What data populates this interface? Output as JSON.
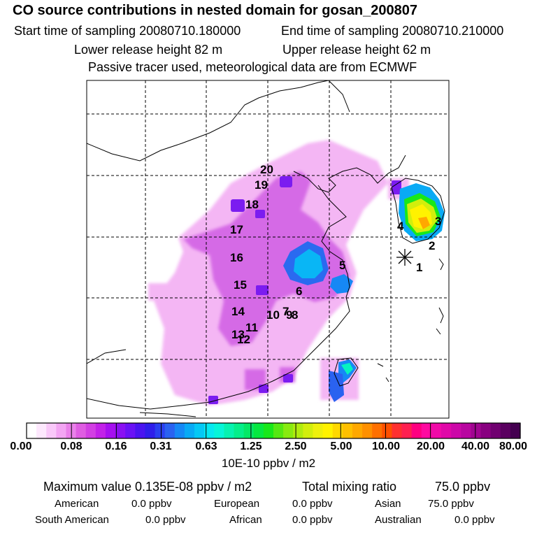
{
  "header": {
    "title": "CO  source contributions in nested domain for gosan_200807",
    "start_sampling": "Start time of sampling 20080710.180000",
    "end_sampling": "End time of sampling 20080710.210000",
    "lower_release": "Lower release height   82 m",
    "upper_release": "Upper release height   62 m",
    "tracer_note": "Passive tracer used, meteorological data are from ECMWF"
  },
  "map": {
    "markers": [
      "1",
      "2",
      "3",
      "4",
      "5",
      "6",
      "7",
      "8",
      "9",
      "10",
      "11",
      "12",
      "13",
      "14",
      "15",
      "16",
      "17",
      "18",
      "19",
      "20"
    ]
  },
  "colorbar": {
    "ticks": [
      "0.00",
      "0.08",
      "0.16",
      "0.31",
      "0.63",
      "1.25",
      "2.50",
      "5.00",
      "10.00",
      "20.00",
      "40.00",
      "80.00"
    ],
    "units": "10E-10 ppbv / m2",
    "colors": [
      "#ffffff",
      "#fde8fd",
      "#f9c8f9",
      "#f3a5f3",
      "#ea80ea",
      "#df5de2",
      "#d23fe3",
      "#c221e8",
      "#a60ff0",
      "#8a10f2",
      "#6a12f5",
      "#4a14f0",
      "#2f1eea",
      "#2a40f0",
      "#2a62f0",
      "#1688f5",
      "#09aaf5",
      "#05c8f5",
      "#06e8f0",
      "#06f5d8",
      "#06f2b0",
      "#05ee8a",
      "#05e866",
      "#06e840",
      "#18e81a",
      "#55e812",
      "#88ea10",
      "#b0ec0e",
      "#d2ee0c",
      "#eef00c",
      "#fff200",
      "#ffd800",
      "#ffc000",
      "#ffa800",
      "#ff9000",
      "#ff7000",
      "#ff5000",
      "#ff3030",
      "#ff2050",
      "#ff0080",
      "#ff0aa0",
      "#f00aa8",
      "#e008a8",
      "#cc08a8",
      "#b806a0",
      "#a00490",
      "#880080",
      "#700070",
      "#5a0060",
      "#440050"
    ]
  },
  "summary": {
    "max_value": "Maximum value  0.135E-08 ppbv / m2",
    "total_mixing_label": "Total mixing ratio",
    "total_mixing_value": "75.0 ppbv",
    "american_label": "American",
    "american_value": "0.0 ppbv",
    "european_label": "European",
    "european_value": "0.0 ppbv",
    "asian_label": "Asian",
    "asian_value": "75.0 ppbv",
    "south_american_label": "South American",
    "south_american_value": "0.0 ppbv",
    "african_label": "African",
    "african_value": "0.0 ppbv",
    "australian_label": "Australian",
    "australian_value": "0.0 ppbv"
  }
}
